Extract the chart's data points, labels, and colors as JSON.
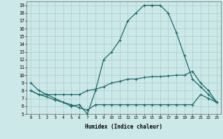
{
  "xlabel": "Humidex (Indice chaleur)",
  "bg_color": "#cce8e8",
  "grid_color": "#aacccc",
  "line_color": "#1a6b6b",
  "xlim": [
    -0.5,
    23.5
  ],
  "ylim": [
    5,
    19.5
  ],
  "xticks": [
    0,
    1,
    2,
    3,
    4,
    5,
    6,
    7,
    8,
    9,
    10,
    11,
    12,
    13,
    14,
    15,
    16,
    17,
    18,
    19,
    20,
    21,
    22,
    23
  ],
  "yticks": [
    5,
    6,
    7,
    8,
    9,
    10,
    11,
    12,
    13,
    14,
    15,
    16,
    17,
    18,
    19
  ],
  "line1_x": [
    0,
    1,
    2,
    3,
    4,
    5,
    6,
    7,
    8,
    9,
    10,
    11,
    12,
    13,
    14,
    15,
    16,
    17,
    18,
    19,
    20,
    21,
    22,
    23
  ],
  "line1_y": [
    9,
    8,
    7.5,
    7,
    6.5,
    6,
    6.2,
    5,
    8,
    12,
    13,
    14.5,
    17,
    18,
    19,
    19,
    19,
    18,
    15.5,
    12.5,
    9.5,
    8.5,
    7.5,
    6.5
  ],
  "line2_x": [
    0,
    1,
    2,
    3,
    4,
    5,
    6,
    7,
    8,
    9,
    10,
    11,
    12,
    13,
    14,
    15,
    16,
    17,
    18,
    19,
    20,
    21,
    22,
    23
  ],
  "line2_y": [
    8,
    7.5,
    7.5,
    7.5,
    7.5,
    7.5,
    7.5,
    8,
    8.2,
    8.5,
    9.0,
    9.2,
    9.5,
    9.5,
    9.7,
    9.8,
    9.8,
    9.9,
    10.0,
    10.0,
    10.5,
    9.0,
    8.0,
    6.5
  ],
  "line3_x": [
    0,
    1,
    2,
    3,
    4,
    5,
    6,
    7,
    8,
    9,
    10,
    11,
    12,
    13,
    14,
    15,
    16,
    17,
    18,
    19,
    20,
    21,
    22,
    23
  ],
  "line3_y": [
    8,
    7.5,
    7.2,
    6.8,
    6.5,
    6.2,
    5.8,
    5.5,
    6.2,
    6.2,
    6.2,
    6.2,
    6.2,
    6.2,
    6.2,
    6.2,
    6.2,
    6.2,
    6.2,
    6.2,
    6.2,
    7.5,
    7.0,
    6.5
  ]
}
